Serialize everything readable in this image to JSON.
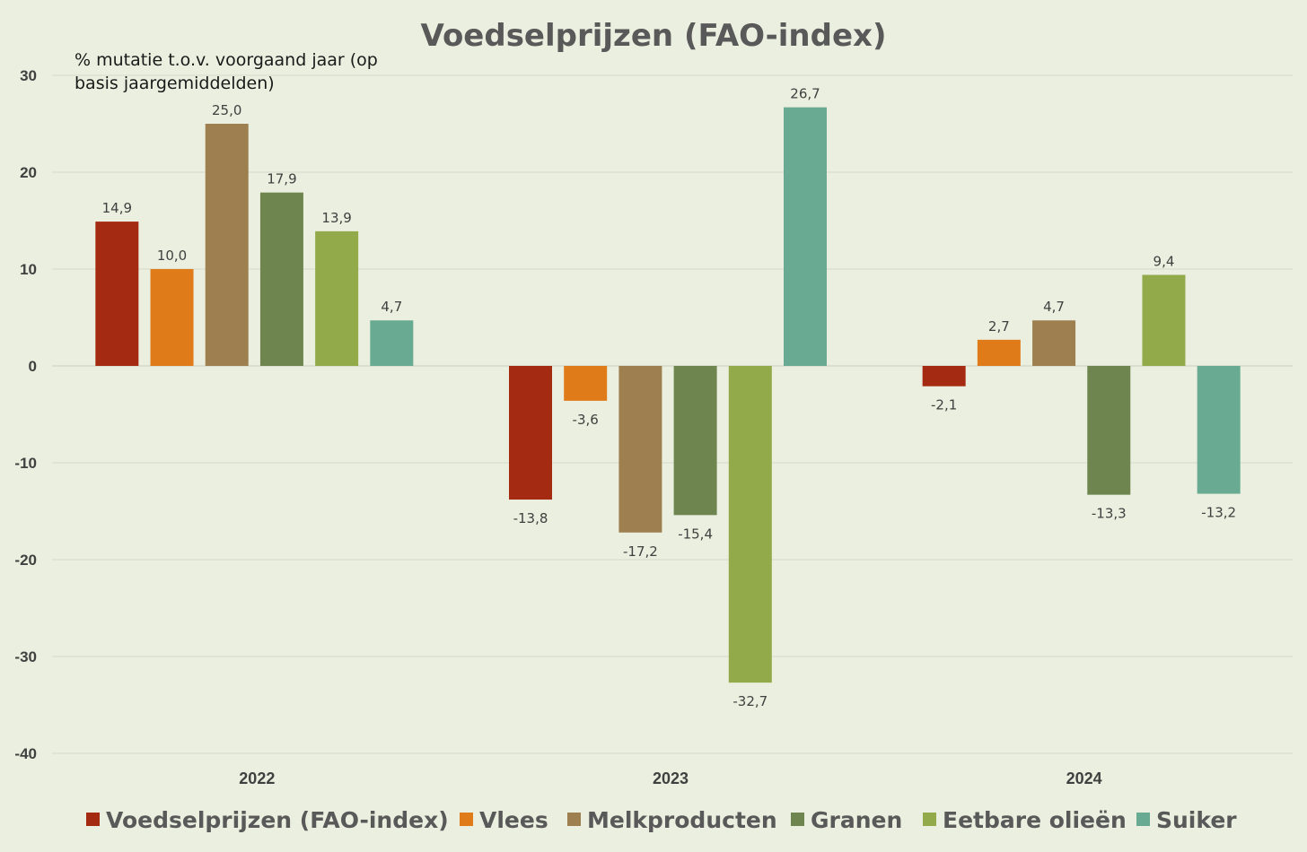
{
  "chart_data": {
    "type": "bar",
    "title": "Voedselprijzen (FAO-index)",
    "subtitle": "% mutatie t.o.v. voorgaand jaar (op basis jaargemiddelden)",
    "subtitle_lines": [
      "% mutatie t.o.v. voorgaand jaar (op",
      "basis jaargemiddelden)"
    ],
    "categories": [
      "2022",
      "2023",
      "2024"
    ],
    "ylim": [
      -40,
      30
    ],
    "yticks": [
      30,
      20,
      10,
      0,
      -10,
      -20,
      -30,
      -40
    ],
    "grid": true,
    "legend_position": "bottom",
    "series": [
      {
        "name": "Voedselprijzen (FAO-index)",
        "color": "#a52a12",
        "values": [
          14.9,
          -13.8,
          -2.1
        ],
        "labels": [
          "14,9",
          "-13,8",
          "-2,1"
        ]
      },
      {
        "name": "Vlees",
        "color": "#e07b1a",
        "values": [
          10.0,
          -3.6,
          2.7
        ],
        "labels": [
          "10,0",
          "-3,6",
          "2,7"
        ]
      },
      {
        "name": "Melkproducten",
        "color": "#9e8050",
        "values": [
          25.0,
          -17.2,
          4.7
        ],
        "labels": [
          "25,0",
          "-17,2",
          "4,7"
        ]
      },
      {
        "name": "Granen",
        "color": "#6e8550",
        "values": [
          17.9,
          -15.4,
          -13.3
        ],
        "labels": [
          "17,9",
          "-15,4",
          "-13,3"
        ]
      },
      {
        "name": "Eetbare olieën",
        "color": "#93aa4a",
        "values": [
          13.9,
          -32.7,
          9.4
        ],
        "labels": [
          "13,9",
          "-32,7",
          "9,4"
        ]
      },
      {
        "name": "Suiker",
        "color": "#68ab92",
        "values": [
          4.7,
          26.7,
          -13.2
        ],
        "labels": [
          "4,7",
          "26,7",
          "-13,2"
        ]
      }
    ]
  }
}
